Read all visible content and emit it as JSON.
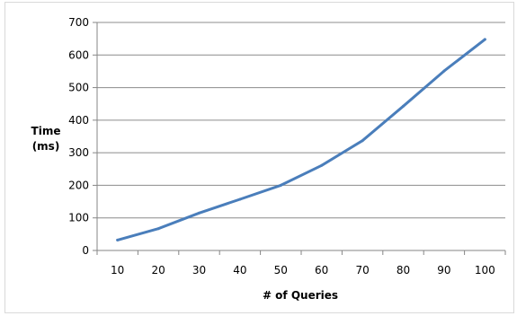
{
  "chart_data": {
    "type": "line",
    "title": "",
    "xlabel": "# of Queries",
    "ylabel_lines": [
      "Time",
      "(ms)"
    ],
    "categories": [
      "10",
      "20",
      "30",
      "40",
      "50",
      "60",
      "70",
      "80",
      "90",
      "100"
    ],
    "series": [
      {
        "values": [
          32,
          67,
          115,
          157,
          200,
          261,
          337,
          443,
          551,
          648
        ],
        "color": "#4a7ebb"
      }
    ],
    "ylim": [
      0,
      700
    ],
    "yticks": [
      0,
      100,
      200,
      300,
      400,
      500,
      600,
      700
    ],
    "grid": true,
    "legend": "none"
  }
}
